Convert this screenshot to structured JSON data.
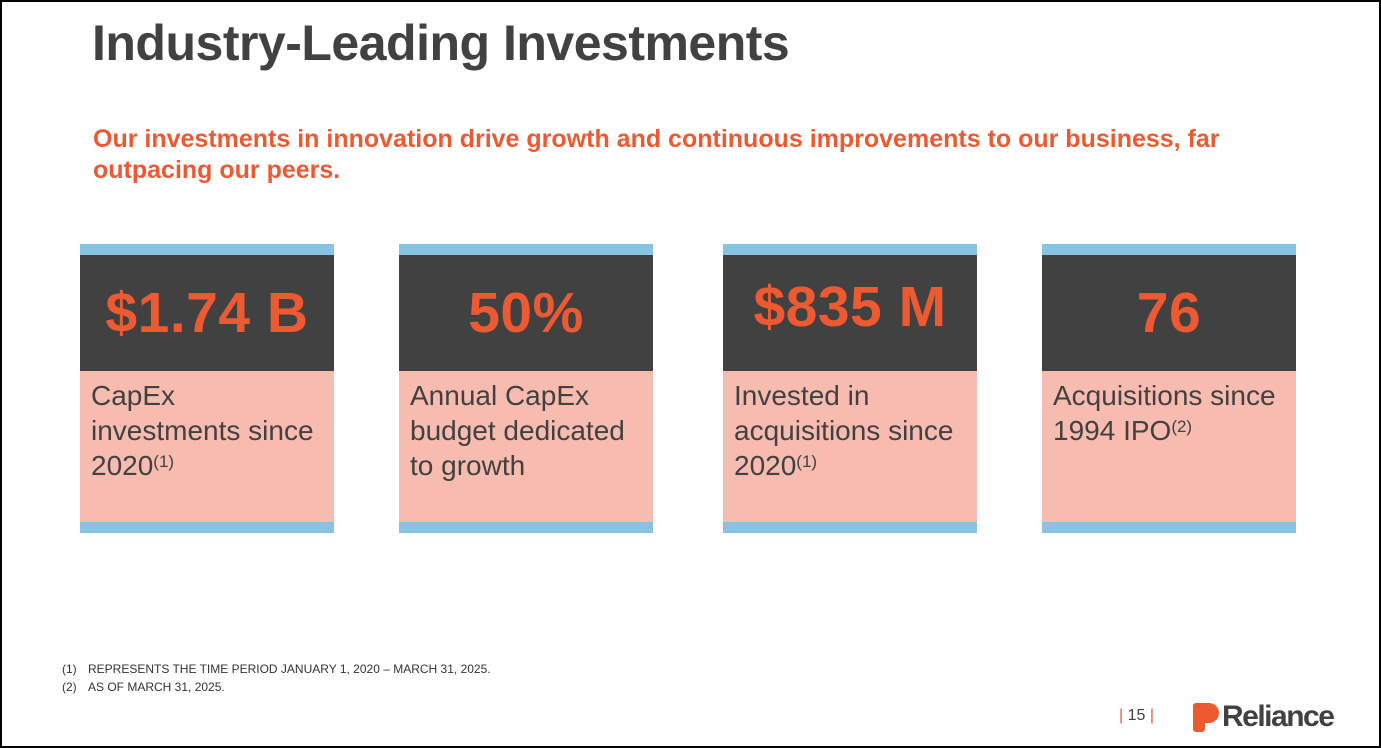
{
  "slide": {
    "title": "Industry-Leading Investments",
    "subtitle": "Our investments in innovation drive growth and continuous improvements to our business, far outpacing our peers."
  },
  "cards": [
    {
      "stat": "$1.74 B",
      "desc": "CapEx investments since 2020",
      "note": "(1)"
    },
    {
      "stat": "50%",
      "desc": "Annual CapEx budget dedicated to growth",
      "note": ""
    },
    {
      "stat": "$835 M",
      "desc": "Invested in acquisitions since 2020",
      "note": "(1)"
    },
    {
      "stat": "76",
      "desc": "Acquisitions since 1994 IPO",
      "note": "(2)"
    }
  ],
  "footnotes": [
    {
      "num": "(1)",
      "text": "REPRESENTS THE TIME PERIOD JANUARY 1, 2020 – MARCH 31, 2025."
    },
    {
      "num": "(2)",
      "text": "AS OF MARCH 31, 2025."
    }
  ],
  "footer": {
    "page_number": "15",
    "logo_text": "Reliance"
  },
  "colors": {
    "accent": "#ed5a32",
    "dark": "#414141",
    "card_fill": "#f8bbb0",
    "card_bar": "#87c3e3"
  }
}
